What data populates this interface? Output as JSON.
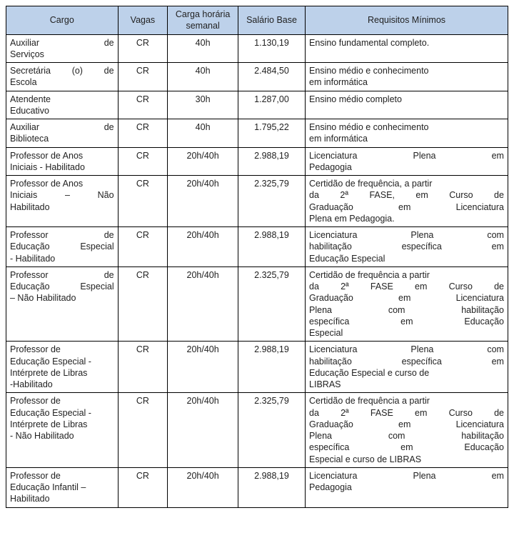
{
  "header_bg": "#bdd1ea",
  "columns": [
    {
      "key": "cargo",
      "label": "Cargo"
    },
    {
      "key": "vagas",
      "label": "Vagas"
    },
    {
      "key": "carga",
      "label": "Carga horária semanal"
    },
    {
      "key": "salario",
      "label": "Salário Base"
    },
    {
      "key": "req",
      "label": "Requisitos Mínimos"
    }
  ],
  "rows": [
    {
      "cargo_lines": [
        [
          "Auxiliar",
          "de"
        ],
        [
          "Serviços"
        ]
      ],
      "vagas": "CR",
      "carga": "40h",
      "salario": "1.130,19",
      "req_lines": [
        [
          "Ensino fundamental completo."
        ]
      ]
    },
    {
      "cargo_lines": [
        [
          "Secretária",
          "(o)",
          "de"
        ],
        [
          "Escola"
        ]
      ],
      "vagas": "CR",
      "carga": "40h",
      "salario": "2.484,50",
      "req_lines": [
        [
          "Ensino médio e conhecimento"
        ],
        [
          "em informática"
        ]
      ]
    },
    {
      "cargo_lines": [
        [
          "Atendente"
        ],
        [
          "Educativo"
        ]
      ],
      "vagas": "CR",
      "carga": "30h",
      "salario": "1.287,00",
      "req_lines": [
        [
          "Ensino médio completo"
        ]
      ]
    },
    {
      "cargo_lines": [
        [
          "Auxiliar",
          "de"
        ],
        [
          "Biblioteca"
        ]
      ],
      "vagas": "CR",
      "carga": "40h",
      "salario": "1.795,22",
      "req_lines": [
        [
          "Ensino médio e conhecimento"
        ],
        [
          "em informática"
        ]
      ]
    },
    {
      "cargo_lines": [
        [
          "Professor de Anos"
        ],
        [
          "Iniciais - Habilitado"
        ]
      ],
      "vagas": "CR",
      "carga": "20h/40h",
      "salario": "2.988,19",
      "req_lines": [
        [
          "Licenciatura",
          "Plena",
          "em"
        ],
        [
          "Pedagogia"
        ]
      ]
    },
    {
      "cargo_lines": [
        [
          "Professor de Anos"
        ],
        [
          "Iniciais",
          "–",
          "Não"
        ],
        [
          "Habilitado"
        ]
      ],
      "vagas": "CR",
      "carga": "20h/40h",
      "salario": "2.325,79",
      "req_lines": [
        [
          "Certidão de frequência, a partir"
        ],
        [
          "da",
          "2ª",
          "FASE,",
          "em",
          "Curso",
          "de"
        ],
        [
          "Graduação",
          "em",
          "Licenciatura"
        ],
        [
          "Plena em Pedagogia."
        ]
      ]
    },
    {
      "cargo_lines": [
        [
          "Professor",
          "de"
        ],
        [
          "Educação",
          "Especial"
        ],
        [
          "- Habilitado"
        ]
      ],
      "vagas": "CR",
      "carga": "20h/40h",
      "salario": "2.988,19",
      "req_lines": [
        [
          "Licenciatura",
          "Plena",
          "com"
        ],
        [
          "habilitação",
          "específica",
          "em"
        ],
        [
          "Educação Especial"
        ]
      ]
    },
    {
      "cargo_lines": [
        [
          "Professor",
          "de"
        ],
        [
          "Educação",
          "Especial"
        ],
        [
          "– Não Habilitado"
        ]
      ],
      "vagas": "CR",
      "carga": "20h/40h",
      "salario": "2.325,79",
      "req_lines": [
        [
          "Certidão de frequência a partir"
        ],
        [
          "da",
          "2ª",
          "FASE",
          "em",
          "Curso",
          "de"
        ],
        [
          "Graduação",
          "em",
          "Licenciatura"
        ],
        [
          "Plena",
          "com",
          "habilitação"
        ],
        [
          "específica",
          "em",
          "Educação"
        ],
        [
          "Especial"
        ]
      ]
    },
    {
      "cargo_lines": [
        [
          "Professor de"
        ],
        [
          "Educação Especial -"
        ],
        [
          "Intérprete de Libras"
        ],
        [
          "-Habilitado"
        ]
      ],
      "vagas": "CR",
      "carga": "20h/40h",
      "salario": "2.988,19",
      "req_lines": [
        [
          "Licenciatura",
          "Plena",
          "com"
        ],
        [
          "habilitação",
          "específica",
          "em"
        ],
        [
          "Educação Especial e curso de"
        ],
        [
          "LIBRAS"
        ]
      ]
    },
    {
      "cargo_lines": [
        [
          "Professor de"
        ],
        [
          "Educação Especial -"
        ],
        [
          "Intérprete de Libras"
        ],
        [
          "- Não Habilitado"
        ]
      ],
      "vagas": "CR",
      "carga": "20h/40h",
      "salario": "2.325,79",
      "req_lines": [
        [
          "Certidão de frequência a partir"
        ],
        [
          "da",
          "2ª",
          "FASE",
          "em",
          "Curso",
          "de"
        ],
        [
          "Graduação",
          "em",
          "Licenciatura"
        ],
        [
          "Plena",
          "com",
          "habilitação"
        ],
        [
          "específica",
          "em",
          "Educação"
        ],
        [
          "Especial e curso de LIBRAS"
        ]
      ]
    },
    {
      "cargo_lines": [
        [
          "Professor de"
        ],
        [
          "Educação Infantil –"
        ],
        [
          "Habilitado"
        ]
      ],
      "vagas": "CR",
      "carga": "20h/40h",
      "salario": "2.988,19",
      "req_lines": [
        [
          "Licenciatura",
          "Plena",
          "em"
        ],
        [
          "Pedagogia"
        ]
      ]
    }
  ]
}
